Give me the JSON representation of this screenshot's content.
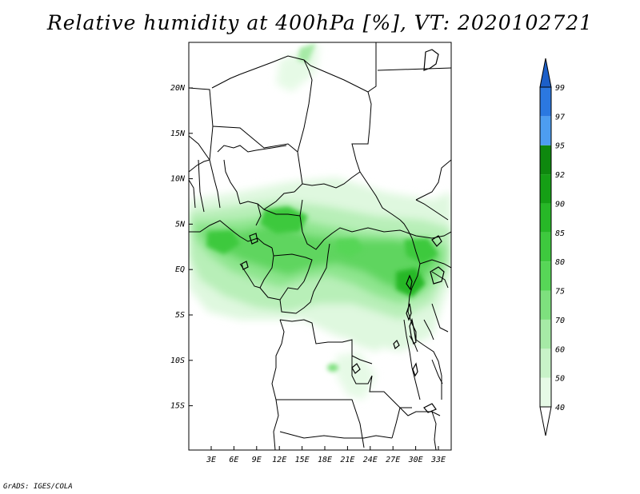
{
  "title": "Relative humidity at 400hPa [%], VT: 2020102721",
  "credit": "GrADS: IGES/COLA",
  "map": {
    "lat_labels": [
      "20N",
      "15N",
      "10N",
      "5N",
      "EQ",
      "5S",
      "10S",
      "15S"
    ],
    "lon_labels": [
      "3E",
      "6E",
      "9E",
      "12E",
      "15E",
      "18E",
      "21E",
      "24E",
      "27E",
      "30E",
      "33E"
    ]
  },
  "colorbar": {
    "levels": [
      "40",
      "50",
      "60",
      "70",
      "75",
      "80",
      "85",
      "90",
      "92",
      "95",
      "97",
      "99"
    ],
    "colors": [
      "#ffffff",
      "#e6fae6",
      "#c8f2c8",
      "#a6eaa6",
      "#7ee07e",
      "#57d657",
      "#3ec93e",
      "#27b827",
      "#159f15",
      "#0e880e",
      "#4d9df0",
      "#2b78e0",
      "#1c5fc8"
    ]
  }
}
